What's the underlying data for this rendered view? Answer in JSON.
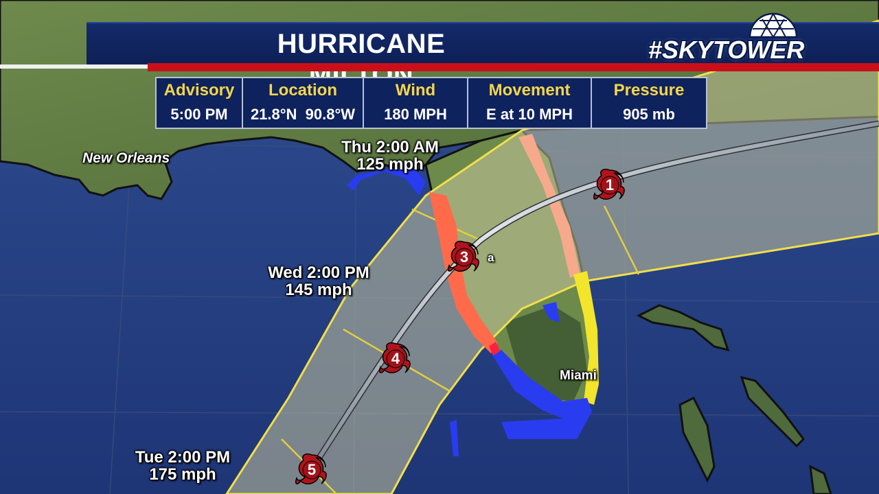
{
  "header": {
    "title": "HURRICANE MILTON",
    "logo_text": "#SKYTOWER"
  },
  "advisory": {
    "columns": [
      {
        "label": "Advisory",
        "value": "5:00 PM"
      },
      {
        "label": "Location",
        "value": "21.8°N  90.8°W"
      },
      {
        "label": "Wind",
        "value": "180 MPH"
      },
      {
        "label": "Movement",
        "value": "E at 10 MPH"
      },
      {
        "label": "Pressure",
        "value": "905 mb"
      }
    ]
  },
  "map": {
    "cities": {
      "new_orleans": "New Orleans",
      "miami": "Miami",
      "tampa_fragment": "a"
    },
    "forecast_labels": {
      "thu": {
        "time": "Thu 2:00 AM",
        "speed": "125 mph"
      },
      "wed": {
        "time": "Wed 2:00 PM",
        "speed": "145 mph"
      },
      "tue": {
        "time": "Tue 2:00 PM",
        "speed": "175 mph"
      }
    },
    "storm_markers": [
      {
        "category": "1"
      },
      {
        "category": "3"
      },
      {
        "category": "4"
      },
      {
        "category": "5"
      }
    ],
    "colors": {
      "storm_marker": "#b0141c",
      "hurricane_warning": "#ff6b4a",
      "tropical_storm_watch": "#f6a98c",
      "tropical_storm_warning": "#2a3cf0",
      "hurricane_watch": "#f2e52c",
      "cone_outline": "#f2df4a",
      "track_line": "#c9cdd4"
    }
  }
}
